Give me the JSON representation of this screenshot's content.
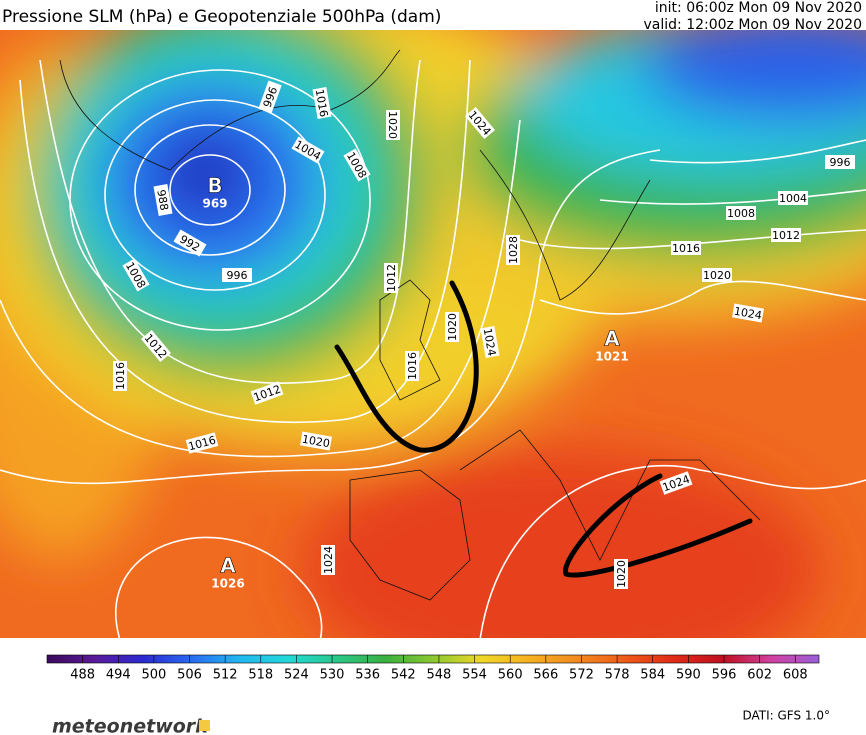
{
  "header": {
    "title": "Pressione SLM (hPa) e Geopotenziale 500hPa (dam)",
    "init": "init: 06:00z Mon 09 Nov 2020",
    "valid": "valid: 12:00z Mon 09 Nov 2020"
  },
  "map": {
    "isobar_labels": [
      "996",
      "1016",
      "1020",
      "1024",
      "1004",
      "1008",
      "988",
      "992",
      "996",
      "1008",
      "1012",
      "1016",
      "1012",
      "1016",
      "1020",
      "1012",
      "1020",
      "1024",
      "1016",
      "1028",
      "1004",
      "996",
      "1008",
      "1012",
      "1016",
      "1020",
      "1024",
      "1024",
      "1024",
      "1020"
    ],
    "pressure_centers": [
      {
        "letter": "B",
        "value": "969"
      },
      {
        "letter": "A",
        "value": "1021"
      },
      {
        "letter": "A",
        "value": "1026"
      }
    ]
  },
  "colorbar": {
    "lim": [
      482,
      612
    ],
    "ticks": [
      488,
      494,
      500,
      506,
      512,
      518,
      524,
      530,
      536,
      542,
      548,
      554,
      560,
      566,
      572,
      578,
      584,
      590,
      596,
      602,
      608
    ],
    "colors": [
      "#3a0a5a",
      "#5a1a9a",
      "#2a2ad0",
      "#2a6af0",
      "#22b8f0",
      "#22d8d8",
      "#2ac88a",
      "#38b040",
      "#8ac830",
      "#f0d828",
      "#f5b020",
      "#f28a20",
      "#ee5a18",
      "#e02a18",
      "#c01020",
      "#d040a0",
      "#9a60d8"
    ]
  },
  "footer": {
    "logo": "meteonetwork",
    "source": "DATI: GFS 1.0°"
  }
}
